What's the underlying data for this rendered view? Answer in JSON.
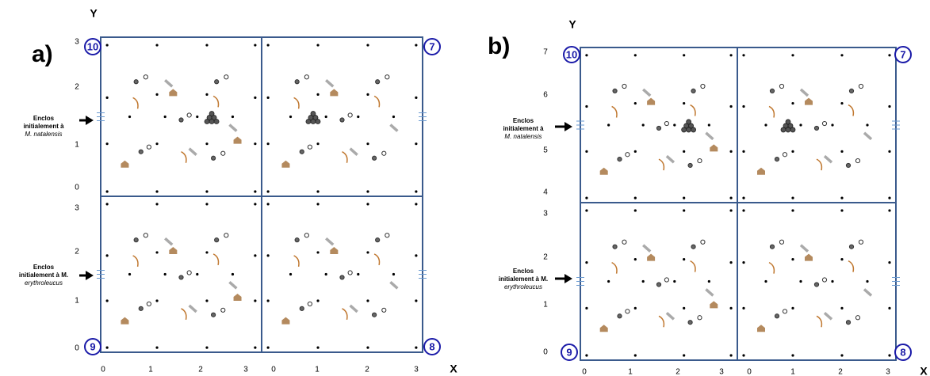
{
  "panels": [
    {
      "label": "a)",
      "y_axis_title": "Y",
      "x_axis_title": "X",
      "y_ticks_upper": [
        "3",
        "2",
        "1",
        "0"
      ],
      "y_ticks_lower": [
        "3",
        "2",
        "1",
        "0"
      ],
      "x_ticks_left": [
        "0",
        "1",
        "2",
        "3"
      ],
      "x_ticks_right": [
        "0",
        "1",
        "2",
        "3"
      ],
      "enclosures": [
        "10",
        "7",
        "9",
        "8"
      ],
      "annotations": [
        {
          "lines": [
            "Enclos",
            "initialement à"
          ],
          "species": "M. natalensis"
        },
        {
          "lines": [
            "Enclos",
            "initialement à M."
          ],
          "species": "erythroleucus"
        }
      ]
    },
    {
      "label": "b)",
      "y_axis_title": "Y",
      "x_axis_title": "X",
      "y_ticks_upper": [
        "7",
        "6",
        "5",
        "4"
      ],
      "y_ticks_lower": [
        "3",
        "2",
        "1",
        "0"
      ],
      "x_ticks_left": [
        "0",
        "1",
        "2",
        "3"
      ],
      "x_ticks_right": [
        "0",
        "1",
        "2",
        "3"
      ],
      "enclosures": [
        "10",
        "7",
        "9",
        "8"
      ],
      "annotations": [
        {
          "lines": [
            "Enclos",
            "initialement à"
          ],
          "species": "M. natalensis"
        },
        {
          "lines": [
            "Enclos",
            "initialement à M."
          ],
          "species": "erythroleucus"
        }
      ]
    }
  ]
}
